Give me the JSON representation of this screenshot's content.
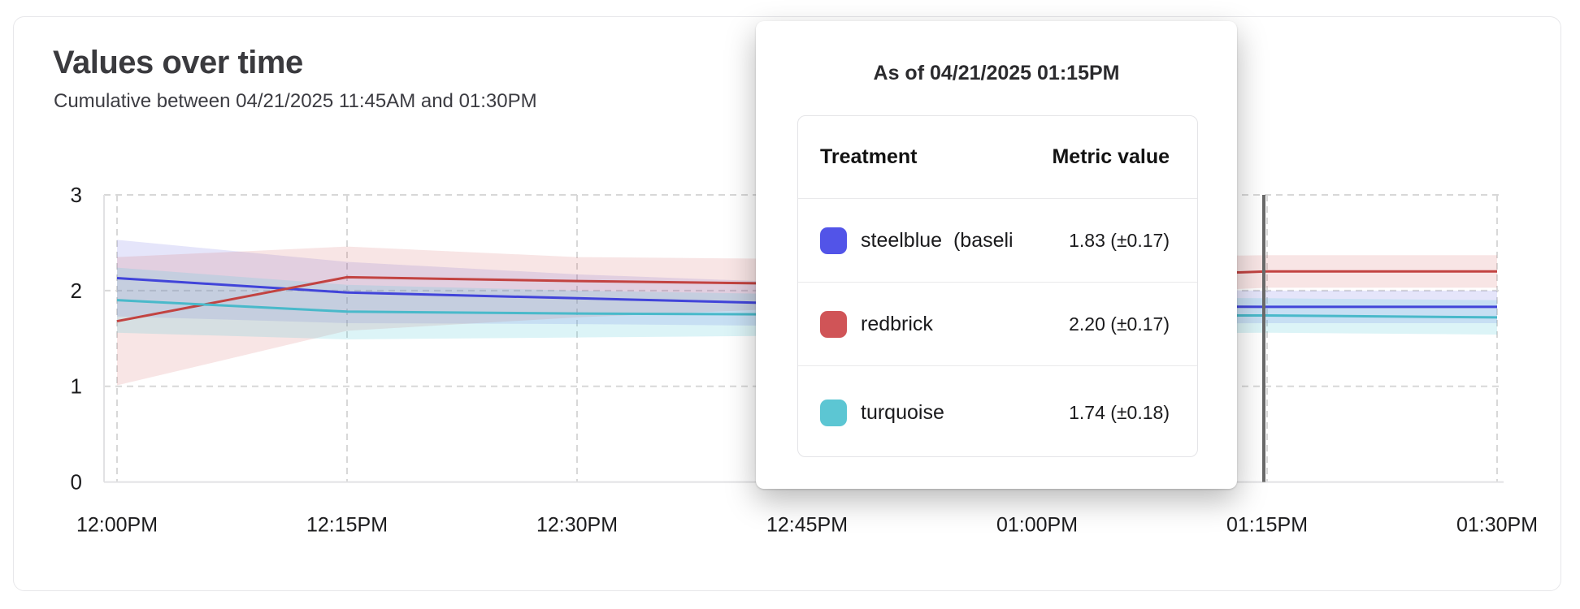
{
  "card": {
    "title": "Values over time",
    "subtitle": "Cumulative between 04/21/2025 11:45AM and 01:30PM"
  },
  "tooltip": {
    "title": "As of 04/21/2025 01:15PM",
    "columns": {
      "treatment": "Treatment",
      "metric_value": "Metric value"
    },
    "rows": [
      {
        "name": "steelblue  (baseli",
        "value": "1.83 (±0.17)",
        "color": "#5254e8"
      },
      {
        "name": "redbrick",
        "value": "2.20 (±0.17)",
        "color": "#d05457"
      },
      {
        "name": "turquoise",
        "value": "1.74 (±0.18)",
        "color": "#5cc6d3"
      }
    ]
  },
  "chart_data": {
    "type": "line",
    "title": "Values over time",
    "subtitle": "Cumulative between 04/21/2025 11:45AM and 01:30PM",
    "x_ticks": [
      "12:00PM",
      "12:15PM",
      "12:30PM",
      "12:45PM",
      "01:00PM",
      "01:15PM",
      "01:30PM"
    ],
    "y_ticks": [
      0,
      1,
      2,
      3
    ],
    "ylim": [
      0,
      3
    ],
    "grid": "dashed",
    "legend_position": "none",
    "hover_marker": {
      "x_tick": "01:15PM",
      "x_index": 5,
      "color": "#6a6a6a"
    },
    "series": [
      {
        "name": "steelblue (baseline)",
        "color": "#4144d9",
        "band_color": "rgba(92,94,226,0.16)",
        "values": [
          2.13,
          1.98,
          1.92,
          1.86,
          1.84,
          1.83,
          1.83
        ],
        "band_upper": [
          2.53,
          2.3,
          2.17,
          2.08,
          2.02,
          2.0,
          2.0
        ],
        "band_lower": [
          1.73,
          1.66,
          1.65,
          1.63,
          1.65,
          1.66,
          1.66
        ]
      },
      {
        "name": "redbrick",
        "color": "#c24341",
        "band_color": "rgba(214,92,92,0.16)",
        "values": [
          1.68,
          2.14,
          2.1,
          2.07,
          2.12,
          2.2,
          2.2
        ],
        "band_upper": [
          2.35,
          2.46,
          2.35,
          2.33,
          2.34,
          2.37,
          2.37
        ],
        "band_lower": [
          1.01,
          1.58,
          1.72,
          1.82,
          1.92,
          2.03,
          2.03
        ]
      },
      {
        "name": "turquoise",
        "color": "#49b9ca",
        "band_color": "rgba(96,205,219,0.22)",
        "values": [
          1.9,
          1.78,
          1.76,
          1.75,
          1.74,
          1.74,
          1.72
        ],
        "band_upper": [
          2.24,
          2.06,
          2.0,
          1.96,
          1.93,
          1.92,
          1.9
        ],
        "band_lower": [
          1.56,
          1.49,
          1.51,
          1.53,
          1.54,
          1.56,
          1.54
        ]
      }
    ]
  }
}
